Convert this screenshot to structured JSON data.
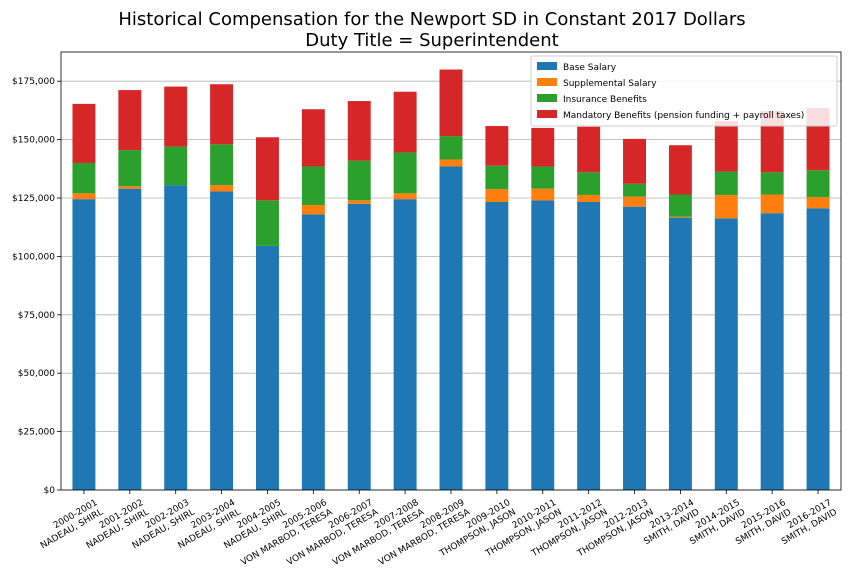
{
  "chart_data": {
    "type": "bar",
    "stacked": true,
    "title": "Historical Compensation for the Newport SD in Constant 2017 Dollars",
    "subtitle": "Duty Title = Superintendent",
    "xlabel": "",
    "ylabel": "",
    "ylim": [
      0,
      187500
    ],
    "yticks": [
      0,
      25000,
      50000,
      75000,
      100000,
      125000,
      150000,
      175000
    ],
    "ytick_labels": [
      "$0",
      "$25,000",
      "$50,000",
      "$75,000",
      "$100,000",
      "$125,000",
      "$150,000",
      "$175,000"
    ],
    "grid": "horizontal",
    "legend_position": "top-right",
    "categories": [
      [
        "2000-2001",
        "NADEAU, SHIRL"
      ],
      [
        "2001-2002",
        "NADEAU, SHIRL"
      ],
      [
        "2002-2003",
        "NADEAU, SHIRL"
      ],
      [
        "2003-2004",
        "NADEAU, SHIRL"
      ],
      [
        "2004-2005",
        "NADEAU, SHIRL"
      ],
      [
        "2005-2006",
        "VON MARBOD, TERESA"
      ],
      [
        "2006-2007",
        "VON MARBOD, TERESA"
      ],
      [
        "2007-2008",
        "VON MARBOD, TERESA"
      ],
      [
        "2008-2009",
        "VON MARBOD, TERESA"
      ],
      [
        "2009-2010",
        "THOMPSON, JASON"
      ],
      [
        "2010-2011",
        "THOMPSON, JASON"
      ],
      [
        "2011-2012",
        "THOMPSON, JASON"
      ],
      [
        "2012-2013",
        "THOMPSON, JASON"
      ],
      [
        "2013-2014",
        "SMITH, DAVID"
      ],
      [
        "2014-2015",
        "SMITH, DAVID"
      ],
      [
        "2015-2016",
        "SMITH, DAVID"
      ],
      [
        "2016-2017",
        "SMITH, DAVID"
      ]
    ],
    "series": [
      {
        "name": "Base Salary",
        "color": "#1f77b4",
        "values": [
          124500,
          129000,
          130500,
          127800,
          104500,
          118000,
          122500,
          124500,
          138500,
          123300,
          124000,
          123300,
          121300,
          116600,
          116300,
          118500,
          120600
        ]
      },
      {
        "name": "Supplemental Salary",
        "color": "#ff7f0e",
        "values": [
          2500,
          1000,
          0,
          2700,
          0,
          4000,
          1500,
          2500,
          3000,
          5500,
          5000,
          3000,
          4300,
          400,
          10000,
          8000,
          4800
        ]
      },
      {
        "name": "Insurance Benefits",
        "color": "#2ca02c",
        "values": [
          13000,
          15500,
          16500,
          17500,
          19500,
          16500,
          17000,
          17500,
          10000,
          10000,
          9500,
          9700,
          5500,
          9500,
          10000,
          9500,
          11500
        ]
      },
      {
        "name": "Mandatory Benefits (pension funding + payroll taxes)",
        "color": "#d62728",
        "values": [
          25300,
          25700,
          25700,
          25700,
          27000,
          24500,
          25500,
          26000,
          28500,
          17000,
          16500,
          19500,
          19200,
          21100,
          21700,
          26300,
          26600
        ]
      }
    ]
  }
}
